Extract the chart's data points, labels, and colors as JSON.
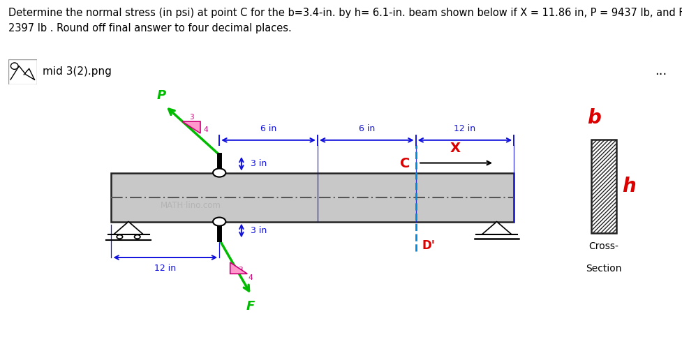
{
  "title_line1": "Determine the normal stress (in psi) at point C for the b=3.4-in. by h= 6.1-in. beam shown below if X = 11.86 in, P = 9437 lb, and F =",
  "title_line2": "2397 lb . Round off final answer to four decimal places.",
  "title_fontsize": 10.5,
  "bg_color": "#ffffff",
  "diagram_bg": "#f0f0f0",
  "beam_fill": "#c8c8c8",
  "beam_edge": "#222222",
  "neutral_color": "#555555",
  "blue": "#1010dd",
  "red": "#dd0000",
  "green": "#00bb00",
  "magenta": "#dd00aa",
  "cyan": "#0088dd",
  "black": "#111111",
  "gray_text": "#aaaaaa",
  "math_label": "MATH·lino.com",
  "cross_label1": "Cross-",
  "cross_label2": "Section",
  "dim_6in_1": "6 in",
  "dim_6in_2": "6 in",
  "dim_12in_top": "12 in",
  "dim_3in_top": "3 in",
  "dim_3in_bot": "3 in",
  "dim_12in_bot": "12 in",
  "label_P": "P",
  "label_F": "F",
  "label_C": "C",
  "label_X": "X",
  "label_D": "D'",
  "num_3_top": "3",
  "num_4_top": "4",
  "num_3_bot": "3",
  "num_4_bot": "4",
  "label_b": "b",
  "label_h": "h"
}
